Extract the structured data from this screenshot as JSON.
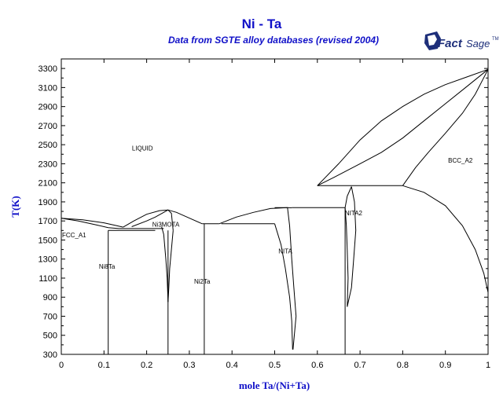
{
  "chart_data": {
    "type": "line",
    "title": "Ni - Ta",
    "subtitle": "Data from SGTE alloy databases (revised 2004)",
    "xlabel": "mole Ta/(Ni+Ta)",
    "ylabel": "T(K)",
    "xlim": [
      0,
      1
    ],
    "ylim": [
      300,
      3400
    ],
    "x_ticks": [
      "0",
      "0.1",
      "0.2",
      "0.3",
      "0.4",
      "0.5",
      "0.6",
      "0.7",
      "0.8",
      "0.9",
      "1"
    ],
    "y_ticks": [
      "300",
      "500",
      "700",
      "900",
      "1100",
      "1300",
      "1500",
      "1700",
      "1900",
      "2100",
      "2300",
      "2500",
      "2700",
      "2900",
      "3100",
      "3300"
    ],
    "logo": {
      "main": "Fact",
      "secondary": "Sage",
      "mark": "TM"
    },
    "phase_labels": [
      {
        "text": "LIQUID",
        "x": 0.19,
        "y": 2440
      },
      {
        "text": "FCC_A1",
        "x": 0.03,
        "y": 1530
      },
      {
        "text": "Ni8Ta",
        "x": 0.107,
        "y": 1200
      },
      {
        "text": "Ni3MOTA",
        "x": 0.245,
        "y": 1640
      },
      {
        "text": "Ni2Ta",
        "x": 0.33,
        "y": 1040
      },
      {
        "text": "NITA",
        "x": 0.525,
        "y": 1360
      },
      {
        "text": "NITA2",
        "x": 0.685,
        "y": 1760
      },
      {
        "text": "BCC_A2",
        "x": 0.935,
        "y": 2310
      }
    ],
    "series": [
      {
        "points": [
          [
            0,
            1728
          ],
          [
            0.05,
            1712
          ],
          [
            0.1,
            1680
          ],
          [
            0.13,
            1650
          ],
          [
            0.145,
            1635
          ]
        ]
      },
      {
        "points": [
          [
            0,
            1728
          ],
          [
            0.04,
            1700
          ],
          [
            0.08,
            1660
          ],
          [
            0.11,
            1630
          ],
          [
            0.135,
            1620
          ]
        ]
      },
      {
        "points": [
          [
            0.145,
            1635
          ],
          [
            0.17,
            1700
          ],
          [
            0.2,
            1770
          ],
          [
            0.23,
            1808
          ],
          [
            0.25,
            1815
          ],
          [
            0.27,
            1790
          ],
          [
            0.3,
            1730
          ],
          [
            0.33,
            1670
          ]
        ]
      },
      {
        "points": [
          [
            0.165,
            1640
          ],
          [
            0.2,
            1700
          ],
          [
            0.22,
            1740
          ],
          [
            0.24,
            1790
          ],
          [
            0.25,
            1815
          ],
          [
            0.258,
            1780
          ],
          [
            0.262,
            1600
          ]
        ]
      },
      {
        "points": [
          [
            0.37,
            1670
          ],
          [
            0.41,
            1740
          ],
          [
            0.45,
            1790
          ],
          [
            0.49,
            1830
          ],
          [
            0.53,
            1840
          ],
          [
            0.54,
            1838
          ]
        ]
      },
      {
        "points": [
          [
            0.11,
            1600
          ],
          [
            0.22,
            1600
          ]
        ]
      },
      {
        "points": [
          [
            0.135,
            1620
          ],
          [
            0.24,
            1620
          ]
        ]
      },
      {
        "points": [
          [
            0.11,
            1600
          ],
          [
            0.11,
            300
          ]
        ]
      },
      {
        "points": [
          [
            0.25,
            1600
          ],
          [
            0.25,
            300
          ]
        ]
      },
      {
        "points": [
          [
            0.235,
            1640
          ],
          [
            0.24,
            1560
          ],
          [
            0.245,
            1300
          ],
          [
            0.248,
            1100
          ],
          [
            0.25,
            850
          ]
        ]
      },
      {
        "points": [
          [
            0.262,
            1600
          ],
          [
            0.258,
            1400
          ],
          [
            0.254,
            1200
          ],
          [
            0.252,
            1000
          ],
          [
            0.25,
            850
          ]
        ]
      },
      {
        "points": [
          [
            0.33,
            1670
          ],
          [
            0.37,
            1670
          ]
        ]
      },
      {
        "points": [
          [
            0.335,
            1670
          ],
          [
            0.335,
            300
          ]
        ]
      },
      {
        "points": [
          [
            0.5,
            1670
          ],
          [
            0.375,
            1670
          ]
        ]
      },
      {
        "points": [
          [
            0.5,
            1670
          ],
          [
            0.515,
            1450
          ],
          [
            0.525,
            1200
          ],
          [
            0.535,
            900
          ],
          [
            0.54,
            650
          ],
          [
            0.542,
            350
          ]
        ]
      },
      {
        "points": [
          [
            0.53,
            1840
          ],
          [
            0.535,
            1650
          ],
          [
            0.54,
            1300
          ],
          [
            0.545,
            1000
          ],
          [
            0.55,
            700
          ],
          [
            0.543,
            350
          ]
        ]
      },
      {
        "points": [
          [
            0.5,
            1840
          ],
          [
            0.53,
            1840
          ]
        ]
      },
      {
        "points": [
          [
            0.54,
            1840
          ],
          [
            0.665,
            1840
          ]
        ]
      },
      {
        "points": [
          [
            0.665,
            1840
          ],
          [
            0.665,
            300
          ]
        ]
      },
      {
        "points": [
          [
            0.665,
            1840
          ],
          [
            0.668,
            1650
          ],
          [
            0.67,
            1400
          ],
          [
            0.672,
            1100
          ],
          [
            0.67,
            800
          ]
        ]
      },
      {
        "points": [
          [
            0.68,
            2060
          ],
          [
            0.687,
            1900
          ],
          [
            0.69,
            1600
          ],
          [
            0.685,
            1300
          ],
          [
            0.68,
            1000
          ],
          [
            0.67,
            800
          ]
        ]
      },
      {
        "points": [
          [
            0.68,
            2060
          ],
          [
            0.67,
            1960
          ],
          [
            0.665,
            1840
          ]
        ]
      },
      {
        "points": [
          [
            0.6,
            2070
          ],
          [
            0.8,
            2070
          ]
        ]
      },
      {
        "points": [
          [
            0.6,
            2070
          ],
          [
            0.65,
            2300
          ],
          [
            0.7,
            2550
          ],
          [
            0.75,
            2750
          ],
          [
            0.8,
            2900
          ],
          [
            0.85,
            3030
          ],
          [
            0.9,
            3130
          ],
          [
            0.95,
            3210
          ],
          [
            1,
            3290
          ]
        ]
      },
      {
        "points": [
          [
            0.6,
            2070
          ],
          [
            0.64,
            2160
          ],
          [
            0.7,
            2300
          ],
          [
            0.75,
            2420
          ],
          [
            0.8,
            2570
          ],
          [
            0.85,
            2750
          ],
          [
            0.9,
            2930
          ],
          [
            0.95,
            3110
          ],
          [
            1,
            3290
          ]
        ]
      },
      {
        "points": [
          [
            0.8,
            2070
          ],
          [
            0.83,
            2260
          ],
          [
            0.86,
            2420
          ],
          [
            0.9,
            2620
          ],
          [
            0.94,
            2830
          ],
          [
            0.97,
            3030
          ],
          [
            1,
            3290
          ]
        ]
      },
      {
        "points": [
          [
            0.8,
            2070
          ],
          [
            0.85,
            2000
          ],
          [
            0.9,
            1860
          ],
          [
            0.94,
            1650
          ],
          [
            0.97,
            1400
          ],
          [
            0.99,
            1150
          ],
          [
            1,
            950
          ]
        ]
      }
    ]
  }
}
